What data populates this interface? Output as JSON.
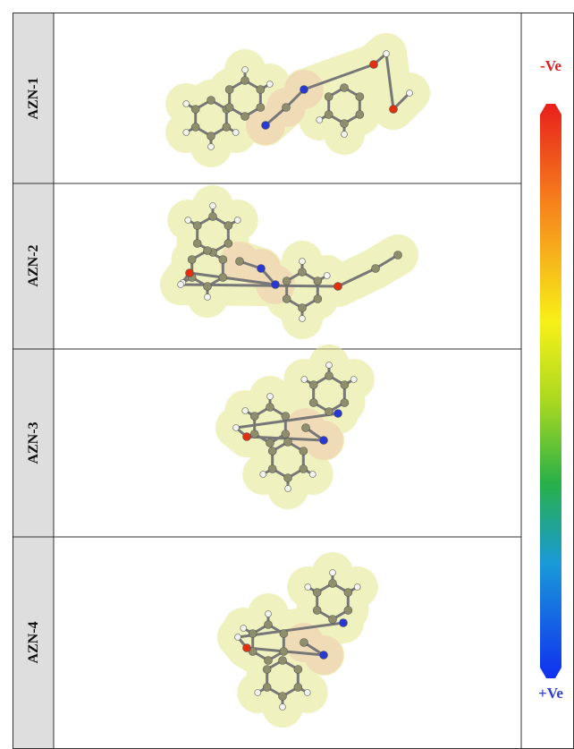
{
  "rows": [
    {
      "label": "AZN-1"
    },
    {
      "label": "AZN-2"
    },
    {
      "label": "AZN-3"
    },
    {
      "label": "AZN-4"
    }
  ],
  "scale": {
    "top_label": "-Ve",
    "bottom_label": "+Ve"
  }
}
